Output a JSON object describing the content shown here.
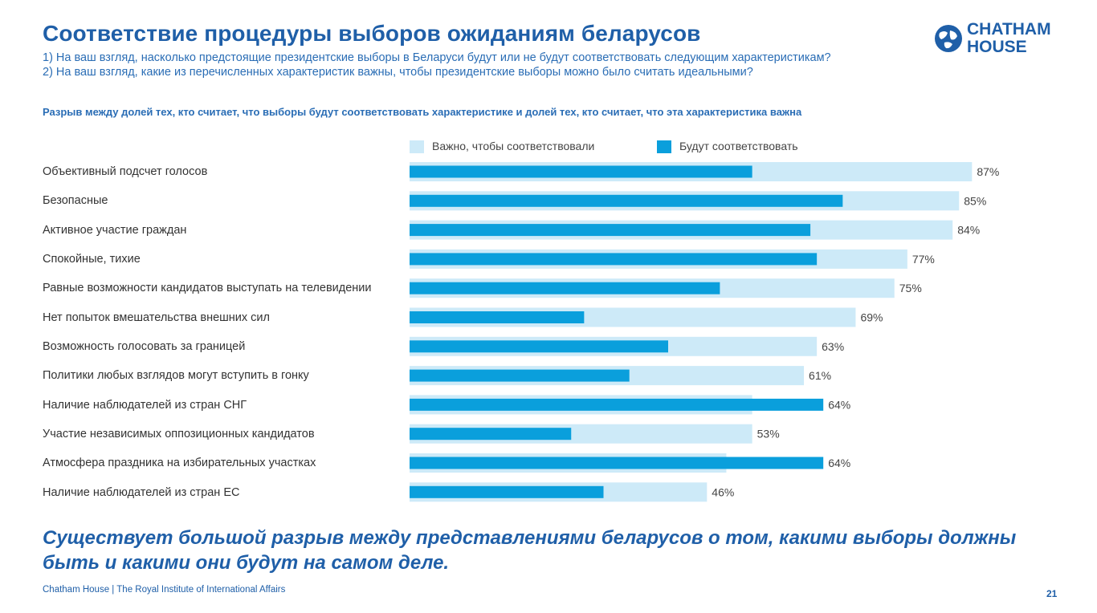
{
  "header": {
    "title": "Соответствие процедуры выборов ожиданиям беларусов",
    "question1": "1) На ваш взгляд, насколько предстоящие президентские выборы в Беларуси будут или не будут соответствовать следующим характеристикам?",
    "question2": "2) На ваш взгляд, какие из перечисленных характеристик важны, чтобы президентские выборы можно было считать идеальными?",
    "logo_line1": "CHATHAM",
    "logo_line2": "HOUSE"
  },
  "chart_data": {
    "type": "bar",
    "orientation": "horizontal",
    "title": "Разрыв между долей тех, кто считает, что выборы будут соответствовать характеристике и долей тех, кто считает, что эта характеристика важна",
    "categories": [
      "Объективный подсчет голосов",
      "Безопасные",
      "Активное участие граждан",
      "Спокойные, тихие",
      "Равные возможности кандидатов выступать на телевидении",
      "Нет попыток вмешательства внешних сил",
      "Возможность голосовать за границей",
      "Политики любых взглядов могут вступить в гонку",
      "Наличие наблюдателей из стран СНГ",
      "Участие независимых оппозиционных кандидатов",
      "Атмосфера праздника на избирательных участках",
      "Наличие наблюдателей из стран ЕС"
    ],
    "series": [
      {
        "name": "Важно, чтобы соответствовали",
        "color": "#cdeaf8",
        "values": [
          87,
          85,
          84,
          77,
          75,
          69,
          63,
          61,
          53,
          53,
          49,
          46
        ]
      },
      {
        "name": "Будут соответствовать",
        "color": "#0a9fdc",
        "values": [
          53,
          67,
          62,
          63,
          48,
          27,
          40,
          34,
          64,
          25,
          64,
          30
        ]
      }
    ],
    "value_labels": [
      "87%",
      "85%",
      "84%",
      "77%",
      "75%",
      "69%",
      "63%",
      "61%",
      "64%",
      "53%",
      "64%",
      "46%"
    ],
    "xlim": [
      0,
      100
    ],
    "legend_position": "top"
  },
  "conclusion": "Существует большой разрыв между представлениями беларусов о том, какими выборы должны быть и какими они будут на самом деле.",
  "footer": {
    "text": "Chatham House  |  The Royal Institute of International Affairs",
    "page": "21"
  }
}
